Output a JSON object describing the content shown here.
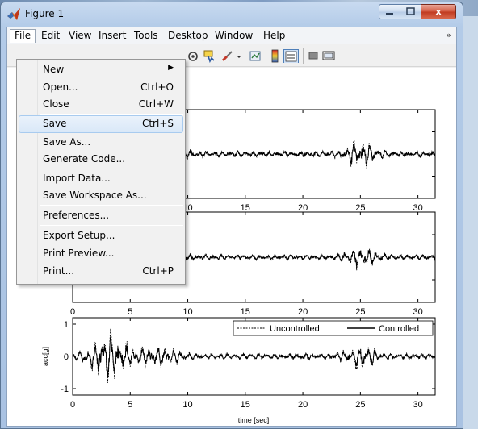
{
  "window": {
    "title": "Figure 1",
    "close_glyph": "x"
  },
  "menubar": {
    "items": [
      "File",
      "Edit",
      "View",
      "Insert",
      "Tools",
      "Desktop",
      "Window",
      "Help"
    ],
    "chevron": "»"
  },
  "file_menu": {
    "items": [
      {
        "label": "New",
        "shortcut": "",
        "submenu": true
      },
      {
        "label": "Open...",
        "shortcut": "Ctrl+O"
      },
      {
        "label": "Close",
        "shortcut": "Ctrl+W"
      },
      {
        "label": "Save",
        "shortcut": "Ctrl+S",
        "highlighted": true
      },
      {
        "label": "Save As...",
        "shortcut": ""
      },
      {
        "label": "Generate Code...",
        "shortcut": ""
      },
      {
        "label": "Import Data...",
        "shortcut": ""
      },
      {
        "label": "Save Workspace As...",
        "shortcut": ""
      },
      {
        "label": "Preferences...",
        "shortcut": ""
      },
      {
        "label": "Export Setup...",
        "shortcut": ""
      },
      {
        "label": "Print Preview...",
        "shortcut": ""
      },
      {
        "label": "Print...",
        "shortcut": "Ctrl+P"
      }
    ],
    "submenu_arrow": "▶"
  },
  "toolbar": {
    "icons": [
      "rotate-3d-icon",
      "data-cursor-icon",
      "brush-icon",
      "link-plot-icon",
      "colorbar-icon",
      "legend-icon",
      "hide-plot-tools-icon",
      "show-plot-tools-icon"
    ]
  },
  "chart_data": [
    {
      "type": "line",
      "x_ticks": [
        10,
        15,
        20,
        25,
        30
      ],
      "xlim": [
        0,
        31.5
      ],
      "series": [
        {
          "style": "dashed",
          "color": "#000000"
        },
        {
          "style": "solid",
          "color": "#000000"
        }
      ]
    },
    {
      "type": "line",
      "x_ticks": [
        0,
        5,
        10,
        15,
        20,
        25,
        30
      ],
      "xlim": [
        0,
        31.5
      ],
      "series": [
        {
          "style": "dashed",
          "color": "#000000"
        },
        {
          "style": "solid",
          "color": "#000000"
        }
      ]
    },
    {
      "type": "line",
      "x_ticks": [
        0,
        5,
        10,
        15,
        20,
        25,
        30
      ],
      "y_ticks": [
        -1,
        0,
        1
      ],
      "xlim": [
        0,
        31.5
      ],
      "ylim": [
        -1.2,
        1.2
      ],
      "xlabel": "time [sec]",
      "ylabel": "acc[g]",
      "legend": "top-right",
      "series": [
        {
          "name": "Uncontrolled",
          "style": "dashed",
          "color": "#000000"
        },
        {
          "name": "Controlled",
          "style": "solid",
          "color": "#000000"
        }
      ]
    }
  ]
}
